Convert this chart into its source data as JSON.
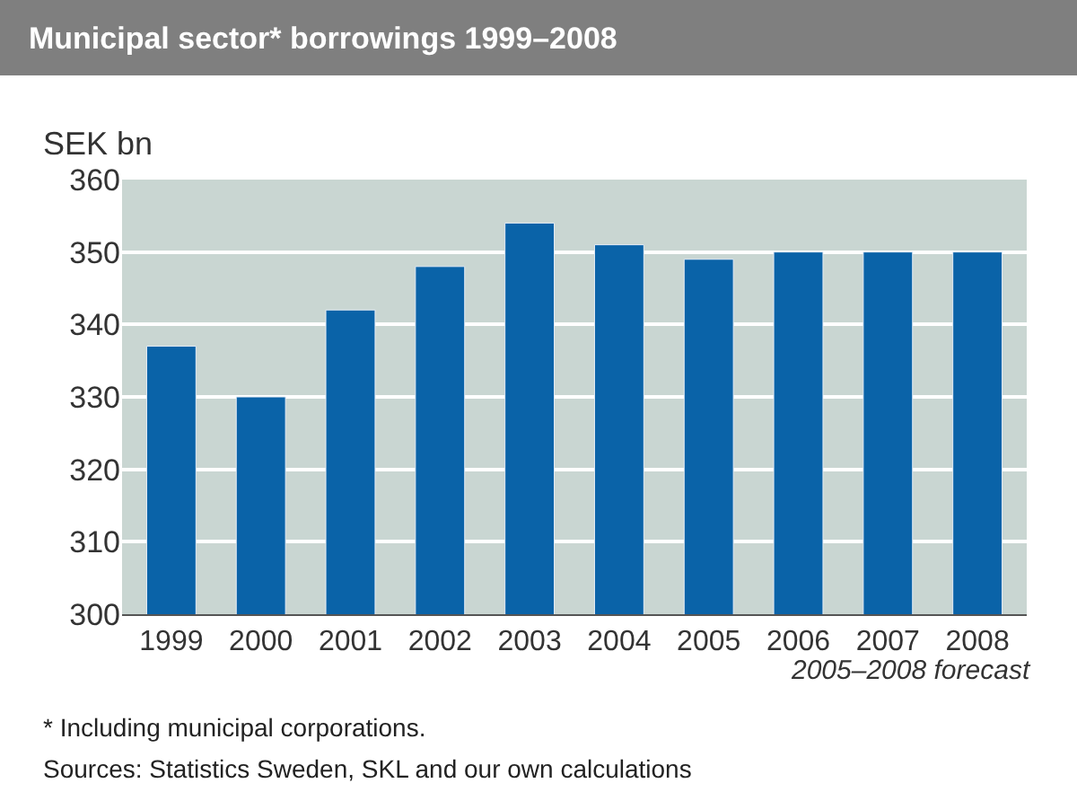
{
  "chart_data": {
    "type": "bar",
    "title": "Municipal sector* borrowings 1999–2008",
    "ylabel": "SEK bn",
    "categories": [
      "1999",
      "2000",
      "2001",
      "2002",
      "2003",
      "2004",
      "2005",
      "2006",
      "2007",
      "2008"
    ],
    "values": [
      337,
      330,
      342,
      348,
      354,
      351,
      349,
      350,
      350,
      350
    ],
    "color": "#0a63a8",
    "ylim": [
      300,
      360
    ],
    "yticks": [
      300,
      310,
      320,
      330,
      340,
      350,
      360
    ],
    "grid": "y",
    "legend": false,
    "annotations": [
      "2005–2008 forecast",
      "* Including municipal corporations.",
      "Sources: Statistics Sweden, SKL and our own calculations"
    ]
  }
}
